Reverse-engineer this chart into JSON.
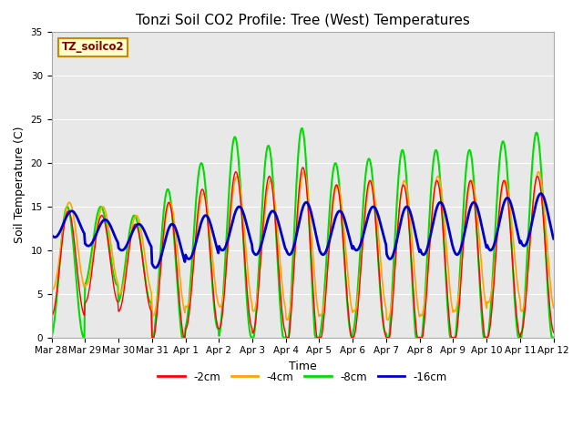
{
  "title": "Tonzi Soil CO2 Profile: Tree (West) Temperatures",
  "xlabel": "Time",
  "ylabel": "Soil Temperature (C)",
  "legend_label": "TZ_soilco2",
  "series_labels": [
    "-2cm",
    "-4cm",
    "-8cm",
    "-16cm"
  ],
  "series_colors": [
    "#ff0000",
    "#ffa500",
    "#00dd00",
    "#0000cc"
  ],
  "series_linewidths": [
    1.0,
    1.2,
    1.5,
    2.0
  ],
  "ylim": [
    0,
    35
  ],
  "yticks": [
    0,
    5,
    10,
    15,
    20,
    25,
    30,
    35
  ],
  "fig_facecolor": "#ffffff",
  "plot_bg_color": "#e8e8e8",
  "grid_color": "#ffffff",
  "title_fontsize": 11,
  "axis_fontsize": 9,
  "tick_fontsize": 7.5,
  "dates": [
    "Mar 28",
    "Mar 29",
    "Mar 30",
    "Mar 31",
    "Apr 1",
    "Apr 2",
    "Apr 3",
    "Apr 4",
    "Apr 5",
    "Apr 6",
    "Apr 7",
    "Apr 8",
    "Apr 9",
    "Apr 10",
    "Apr 11",
    "Apr 12"
  ]
}
